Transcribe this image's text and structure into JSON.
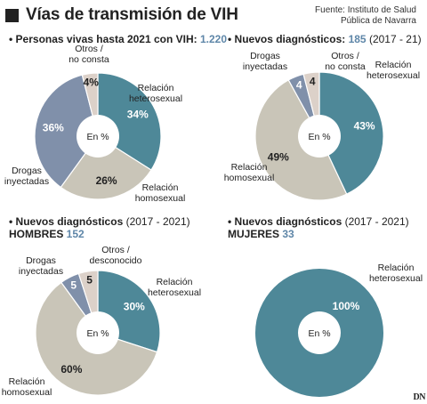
{
  "title": "Vías de transmisión de VIH",
  "source_line1": "Fuente: Instituto de Salud",
  "source_line2": "Pública de Navarra",
  "logo": "DN",
  "colors": {
    "heterosexual": "#4e8898",
    "homosexual": "#c9c5b8",
    "drogas": "#8090aa",
    "otros": "#dcd1c9",
    "accent": "#5e86a8"
  },
  "chart_data": [
    {
      "type": "pie",
      "heading_prefix": "Personas vivas hasta 2021 con VIH: ",
      "heading_value": "1.220",
      "heading_suffix": "",
      "heading_line2_prefix": "",
      "heading_line2_value": "",
      "center_label": "En %",
      "slices": [
        {
          "label": "Relación heterosexual",
          "value": 34,
          "value_label": "34%"
        },
        {
          "label": "Relación homosexual",
          "value": 26,
          "value_label": "26%"
        },
        {
          "label": "Drogas inyectadas",
          "value": 36,
          "value_label": "36%"
        },
        {
          "label": "Otros / no consta",
          "value": 4,
          "value_label": "4%"
        }
      ]
    },
    {
      "type": "pie",
      "heading_prefix": "Nuevos diagnósticos: ",
      "heading_value": "185",
      "heading_suffix": " (2017 - 21)",
      "heading_line2_prefix": "",
      "heading_line2_value": "",
      "center_label": "En %",
      "slices": [
        {
          "label": "Relación heterosexual",
          "value": 43,
          "value_label": "43%"
        },
        {
          "label": "Relación homosexual",
          "value": 49,
          "value_label": "49%"
        },
        {
          "label": "Drogas inyectadas",
          "value": 4,
          "value_label": "4"
        },
        {
          "label": "Otros / no consta",
          "value": 4,
          "value_label": "4"
        }
      ]
    },
    {
      "type": "pie",
      "heading_prefix": "Nuevos diagnósticos",
      "heading_value": "",
      "heading_suffix": " (2017 - 2021)",
      "heading_line2_prefix": "HOMBRES ",
      "heading_line2_value": "152",
      "center_label": "En %",
      "slices": [
        {
          "label": "Relación heterosexual",
          "value": 30,
          "value_label": "30%"
        },
        {
          "label": "Relación homosexual",
          "value": 60,
          "value_label": "60%"
        },
        {
          "label": "Drogas inyectadas",
          "value": 5,
          "value_label": "5"
        },
        {
          "label": "Otros / desconocido",
          "value": 5,
          "value_label": "5"
        }
      ]
    },
    {
      "type": "pie",
      "heading_prefix": "Nuevos diagnósticos",
      "heading_value": "",
      "heading_suffix": " (2017 - 2021)",
      "heading_line2_prefix": "MUJERES ",
      "heading_line2_value": "33",
      "center_label": "En %",
      "slices": [
        {
          "label": "Relación heterosexual",
          "value": 100,
          "value_label": "100%"
        }
      ]
    }
  ]
}
